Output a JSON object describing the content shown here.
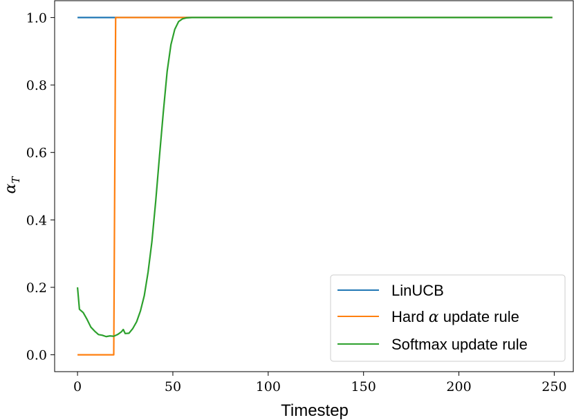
{
  "chart_data": {
    "type": "line",
    "xlabel": "Timestep",
    "ylabel": "α",
    "ylabel_sub": "T",
    "xlim": [
      -12,
      260
    ],
    "ylim": [
      -0.05,
      1.05
    ],
    "xticks": [
      0,
      50,
      100,
      150,
      200,
      250
    ],
    "yticks": [
      0.0,
      0.2,
      0.4,
      0.6,
      0.8,
      1.0
    ],
    "xtick_labels": [
      "0",
      "50",
      "100",
      "150",
      "200",
      "250"
    ],
    "ytick_labels": [
      "0.0",
      "0.2",
      "0.4",
      "0.6",
      "0.8",
      "1.0"
    ],
    "grid": false,
    "legend_position": "lower-right",
    "series": [
      {
        "name": "LinUCB",
        "color": "#1f77b4",
        "x": [
          0,
          249
        ],
        "y": [
          1.0,
          1.0
        ]
      },
      {
        "name_parts": [
          "Hard ",
          "α",
          " update rule"
        ],
        "color": "#ff7f0e",
        "x": [
          0,
          19,
          20,
          249
        ],
        "y": [
          0.0,
          0.0,
          1.0,
          1.0
        ]
      },
      {
        "name": "Softmax update rule",
        "color": "#2ca02c",
        "x": [
          0,
          1,
          3,
          5,
          7,
          9,
          11,
          13,
          15,
          17,
          19,
          21,
          23,
          24,
          25,
          27,
          29,
          31,
          33,
          35,
          37,
          39,
          41,
          43,
          45,
          47,
          49,
          51,
          53,
          55,
          57,
          60,
          65,
          70,
          100,
          150,
          200,
          249
        ],
        "y": [
          0.2,
          0.135,
          0.125,
          0.105,
          0.082,
          0.07,
          0.06,
          0.058,
          0.054,
          0.056,
          0.055,
          0.06,
          0.068,
          0.075,
          0.063,
          0.064,
          0.078,
          0.098,
          0.13,
          0.175,
          0.245,
          0.335,
          0.455,
          0.59,
          0.72,
          0.84,
          0.92,
          0.965,
          0.988,
          0.996,
          0.999,
          1.0,
          1.0,
          1.0,
          1.0,
          1.0,
          1.0,
          1.0
        ]
      }
    ]
  }
}
